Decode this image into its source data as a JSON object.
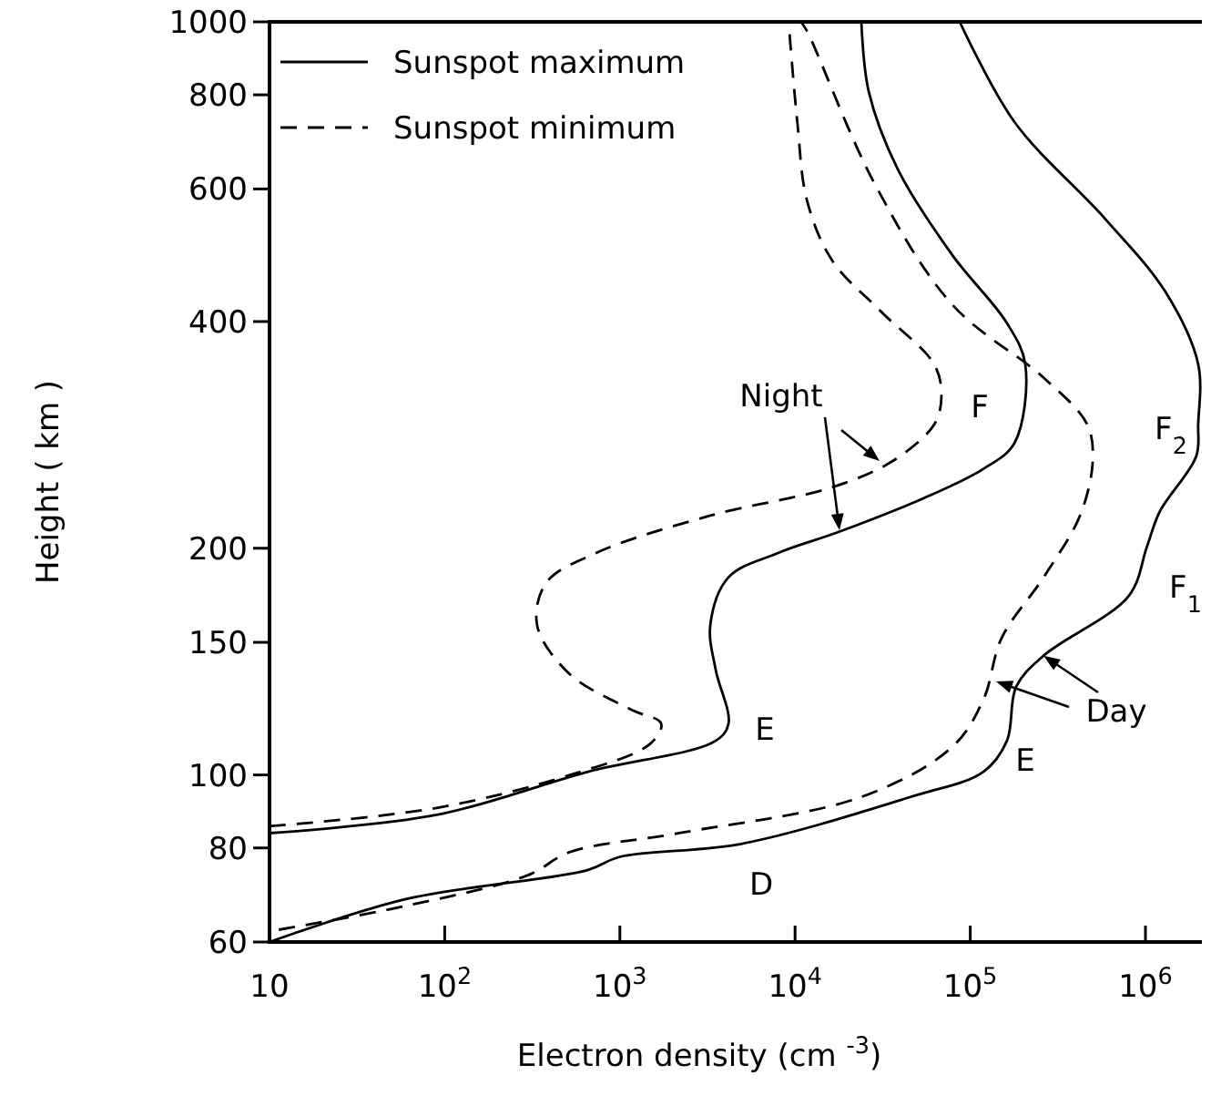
{
  "chart_data": {
    "type": "line",
    "log": "xy",
    "xlabel": "Electron density   (cm $^{-3}$)",
    "ylabel": "Height  ( km )",
    "xlim": [
      10,
      2100000
    ],
    "ylim": [
      60,
      1000
    ],
    "xticks": [
      10,
      {
        "value": 100,
        "label": "10$^{2}$"
      },
      {
        "value": 1000,
        "label": "10$^{3}$"
      },
      {
        "value": 10000,
        "label": "10$^{4}$"
      },
      {
        "value": 100000,
        "label": "10$^{5}$"
      },
      {
        "value": 1000000,
        "label": "10$^{6}$"
      }
    ],
    "yticks": [
      60,
      80,
      100,
      150,
      200,
      400,
      600,
      800,
      1000
    ],
    "legend": "top left",
    "series": [
      {
        "name": "Sunspot maximum",
        "color": "#000000",
        "line_style": "solid",
        "x": [
          10,
          90,
          659,
          3520,
          4170,
          3520,
          3280,
          4170,
          7940,
          17500,
          54000,
          119000,
          179000,
          206000,
          162000,
          79100,
          38600,
          26300,
          23900
        ],
        "values": [
          83.7,
          88.5,
          101,
          111,
          117,
          138,
          158,
          183,
          197,
          210,
          233,
          255,
          276,
          351,
          398,
          490,
          637,
          809,
          1000
        ]
      },
      {
        "name": "Sunspot minimum",
        "color": "#000000",
        "line_style": "dashed",
        "x": [
          10,
          90,
          519,
          1490,
          1720,
          1170,
          519,
          337,
          380,
          727,
          3280,
          16300,
          35900,
          62200,
          68500,
          62200,
          30400,
          16300,
          11700,
          10300,
          9180
        ],
        "values": [
          85.5,
          90.4,
          100,
          110,
          117,
          122,
          136,
          158,
          180,
          197,
          221,
          241,
          261,
          292,
          319,
          351,
          414,
          482,
          579,
          736,
          1000
        ]
      },
      {
        "color": "#000000",
        "line_style": "solid",
        "x": [
          10,
          60,
          659,
          990,
          4920,
          45600,
          119000,
          162000,
          183000,
          262000,
          805000,
          1020000,
          1210000,
          1950000,
          2000000,
          2000000,
          1300000,
          591000,
          179000,
          87100
        ],
        "values": [
          60,
          68.4,
          74.8,
          77.8,
          81,
          93.5,
          101,
          111,
          131,
          144,
          173,
          201,
          224,
          265,
          292,
          351,
          438,
          547,
          736,
          1000
        ]
      },
      {
        "color": "#000000",
        "line_style": "dashed",
        "x": [
          11.3,
          60,
          299,
          519,
          2180,
          23900,
          79100,
          119000,
          151000,
          262000,
          423000,
          500000,
          465000,
          262000,
          79100,
          28200,
          11700,
          10800
        ],
        "values": [
          62.3,
          67,
          73.6,
          79,
          83.7,
          93.5,
          109,
          126,
          152,
          183,
          221,
          261,
          292,
          337,
          421,
          612,
          972,
          1000
        ]
      }
    ],
    "annotations": [
      "Night",
      "F",
      "E",
      "F$_{2}$",
      "F$_{1}$",
      {
        "text": "Day",
        "x": 262000,
        "y": 144
      },
      "E",
      "D"
    ]
  }
}
